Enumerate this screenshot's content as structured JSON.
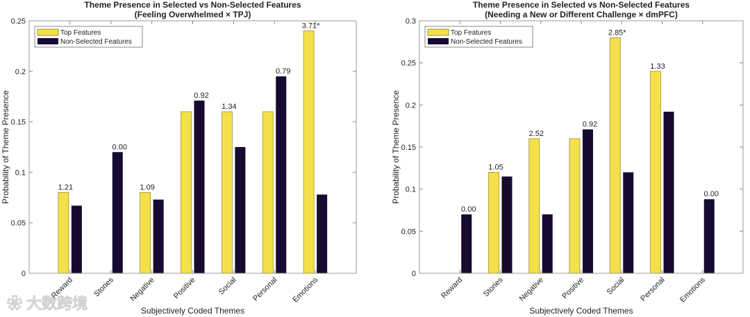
{
  "colors": {
    "top": "#f3e04b",
    "top_edge": "#a09030",
    "non": "#160a30"
  },
  "watermark": "大数跨境",
  "chart_data": [
    {
      "type": "bar",
      "title": "Theme Presence in Selected vs Non-Selected Features",
      "subtitle": "(Feeling Overwhelmed × TPJ)",
      "xlabel": "Subjectively Coded Themes",
      "ylabel": "Probability of Theme Presence",
      "ylim": [
        0,
        0.25
      ],
      "yticks": [
        0,
        0.05,
        0.1,
        0.15,
        0.2,
        0.25
      ],
      "ytick_labels": [
        "0",
        "0.05",
        "0.1",
        "0.15",
        "0.2",
        "0.25"
      ],
      "categories": [
        "Reward",
        "Stories",
        "Negative",
        "Positive",
        "Social",
        "Personal",
        "Emotions"
      ],
      "series": [
        {
          "name": "Top Features",
          "values": [
            0.08,
            0,
            0.08,
            0.16,
            0.16,
            0.16,
            0.24
          ]
        },
        {
          "name": "Non-Selected Features",
          "values": [
            0.067,
            0.12,
            0.073,
            0.171,
            0.125,
            0.195,
            0.078
          ]
        }
      ],
      "annotations": [
        "1.21",
        "0.00",
        "1.09",
        "0.92",
        "1.34",
        "0.79",
        "3.71*"
      ],
      "legend": "top-left"
    },
    {
      "type": "bar",
      "title": "Theme Presence in Selected vs Non-Selected Features",
      "subtitle": "(Needing a New or Different Challenge × dmPFC)",
      "xlabel": "Subjectively Coded Themes",
      "ylabel": "Probability of Theme Presence",
      "ylim": [
        0,
        0.3
      ],
      "yticks": [
        0,
        0.05,
        0.1,
        0.15,
        0.2,
        0.25,
        0.3
      ],
      "ytick_labels": [
        "0",
        "0.05",
        "0.1",
        "0.15",
        "0.2",
        "0.25",
        "0.3"
      ],
      "categories": [
        "Reward",
        "Stories",
        "Negative",
        "Positive",
        "Social",
        "Personal",
        "Emotions"
      ],
      "series": [
        {
          "name": "Top Features",
          "values": [
            0,
            0.12,
            0.16,
            0.16,
            0.28,
            0.24,
            0
          ]
        },
        {
          "name": "Non-Selected Features",
          "values": [
            0.07,
            0.115,
            0.07,
            0.171,
            0.12,
            0.192,
            0.088
          ]
        }
      ],
      "annotations": [
        "0.00",
        "1.05",
        "2.52",
        "0.92",
        "2.85*",
        "1.33",
        "0.00"
      ],
      "legend": "top-left"
    }
  ]
}
